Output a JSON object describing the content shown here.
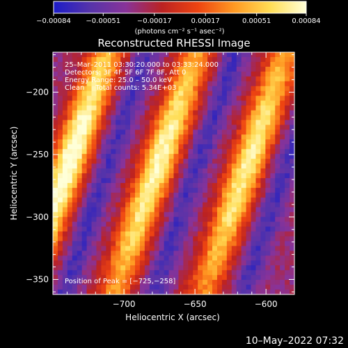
{
  "chart_data": {
    "type": "heatmap",
    "title": "Reconstructed RHESSI Image",
    "xlabel": "Heliocentric X (arcsec)",
    "ylabel": "Heliocentric Y (arcsec)",
    "xlim": [
      -750,
      -580
    ],
    "ylim": [
      -362,
      -168
    ],
    "x_ticks": [
      -700,
      -650,
      -600
    ],
    "x_tick_labels": [
      "−700",
      "−650",
      "−600"
    ],
    "y_ticks": [
      -200,
      -250,
      -300,
      -350
    ],
    "y_tick_labels": [
      "−200",
      "−250",
      "−300",
      "−350"
    ],
    "colorbar": {
      "range": [
        -0.00084,
        0.00084
      ],
      "ticks": [
        -0.00084,
        -0.00051,
        -0.00017,
        0.00017,
        0.00051,
        0.00084
      ],
      "tick_labels": [
        "−0.00084",
        "−0.00051",
        "−0.00017",
        "0.00017",
        "0.00051",
        "0.00084"
      ],
      "units": "(photons cm⁻² s⁻¹ asec⁻²)",
      "colors": [
        "#1c1cc8",
        "#5533aa",
        "#883399",
        "#bb2222",
        "#ee4411",
        "#ff9922",
        "#ffdd55",
        "#ffffd8"
      ]
    },
    "annotations": [
      "25–Mar–2011 03:30:20.000 to 03:33:24.000",
      "Detectors: 3F 4F 5F 6F 7F 8F, Att 0",
      "Energy Range: 25.0 – 50.0 keV",
      "Clean     Total counts: 5.34E+03"
    ],
    "peak_label": "Position of Peak = [−725,−258]",
    "peak": [
      -725,
      -258
    ],
    "ridges": [
      {
        "x0": -739,
        "slope": 0.3,
        "amplitude": 1.0
      },
      {
        "x0": -676,
        "slope": 0.3,
        "amplitude": 0.9
      },
      {
        "x0": -613,
        "slope": 0.3,
        "amplitude": 0.85
      }
    ]
  },
  "footer": {
    "timestamp": "10–May–2022 07:32"
  }
}
